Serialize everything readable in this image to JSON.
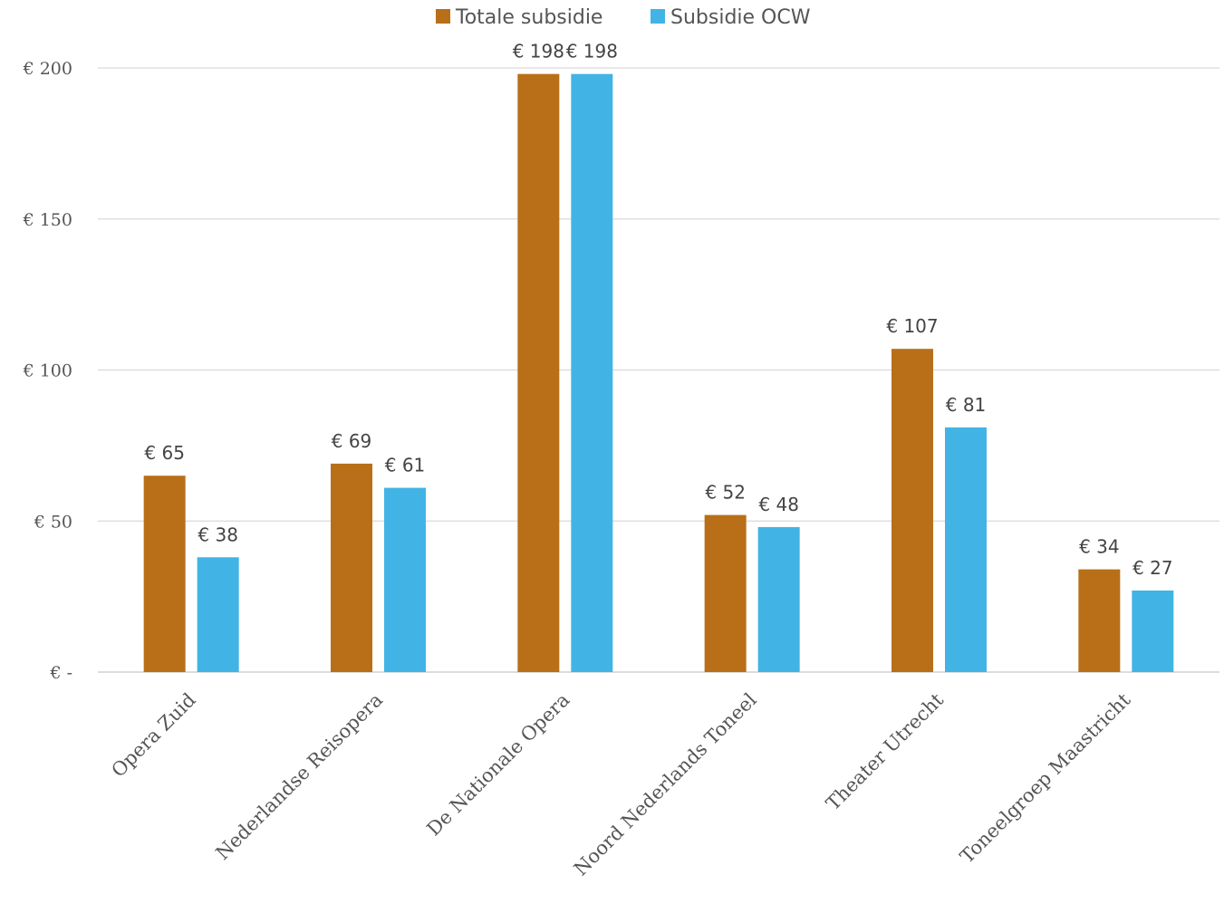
{
  "chart_data": {
    "type": "bar",
    "title": "",
    "xlabel": "",
    "ylabel": "",
    "categories": [
      "Opera Zuid",
      "Nederlandse Reisopera",
      "De Nationale Opera",
      "Noord Nederlands Toneel",
      "Theater Utrecht",
      "Toneelgroep Maastricht"
    ],
    "series": [
      {
        "name": "Totale subsidie",
        "color": "#B86F18",
        "values": [
          65,
          69,
          198,
          52,
          107,
          34
        ],
        "labels": [
          "€ 65",
          "€ 69",
          "€ 198",
          "€ 52",
          "€ 107",
          "€ 34"
        ]
      },
      {
        "name": "Subsidie OCW",
        "color": "#41B4E5",
        "values": [
          38,
          61,
          198,
          48,
          81,
          27
        ],
        "labels": [
          "€ 38",
          "€ 61",
          "€ 198",
          "€ 48",
          "€ 81",
          "€ 27"
        ]
      }
    ],
    "ylim": [
      0,
      200
    ],
    "yticks": [
      0,
      50,
      100,
      150,
      200
    ],
    "ytick_labels": [
      "€ -",
      "€ 50",
      "€ 100",
      "€ 150",
      "€ 200"
    ],
    "grid": true,
    "legend": "top-center",
    "gridline_color": "#D9D9D9"
  }
}
